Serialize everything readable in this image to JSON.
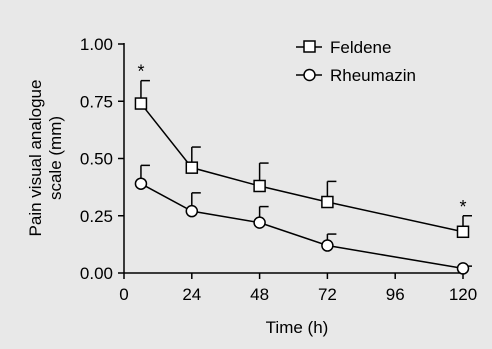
{
  "chart_data": {
    "type": "line",
    "x": [
      6,
      24,
      48,
      72,
      120
    ],
    "series": [
      {
        "name": "Feldene",
        "marker": "square",
        "values": [
          0.74,
          0.46,
          0.38,
          0.31,
          0.18
        ],
        "error_upper": [
          0.84,
          0.55,
          0.48,
          0.4,
          0.25
        ]
      },
      {
        "name": "Rheumazin",
        "marker": "circle",
        "values": [
          0.39,
          0.27,
          0.22,
          0.12,
          0.02
        ],
        "error_upper": [
          0.47,
          0.35,
          0.29,
          0.17,
          0.03
        ]
      }
    ],
    "xticks": [
      "0",
      "24",
      "48",
      "72",
      "96",
      "120"
    ],
    "yticks": [
      "0.00",
      "0.25",
      "0.50",
      "0.75",
      "1.00"
    ],
    "xlim": [
      0,
      120
    ],
    "ylim": [
      0,
      1
    ],
    "xlabel": "Time (h)",
    "ylabel_line1": "Pain visual analogue",
    "ylabel_line2": "scale (mm)",
    "annotations": [
      {
        "text": "*",
        "x": 6,
        "y": 0.84
      },
      {
        "text": "*",
        "x": 120,
        "y": 0.25
      }
    ],
    "legend_position": "top-right",
    "grid": false,
    "colors": {
      "background": "#e8e8e8",
      "line": "#000000",
      "marker_fill": "#ffffff"
    }
  }
}
